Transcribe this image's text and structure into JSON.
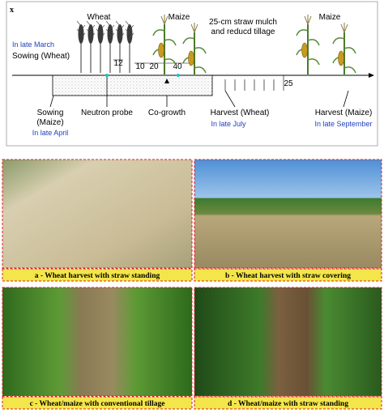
{
  "diagram": {
    "letter": "x",
    "wheat": "Wheat",
    "maize_1": "Maize",
    "mulch_1": "25-cm straw mulch",
    "mulch_2": "and reducd tillage",
    "maize_2": "Maize",
    "late_march": "In late March",
    "sowing_wheat": "Sowing (Wheat)",
    "dims": [
      12,
      10,
      20,
      40,
      25
    ],
    "sowing_maize_1": "Sowing",
    "sowing_maize_2": "(Maize)",
    "late_april": "In late April",
    "neutron_probe": "Neutron probe",
    "co_growth": "Co-growth",
    "harvest_wheat": "Harvest (Wheat)",
    "late_july": "In late July",
    "harvest_maize": "Harvest (Maize)",
    "late_september": "In late September"
  },
  "photos": [
    {
      "caption": "a - Wheat harvest with straw standing"
    },
    {
      "caption": "b - Wheat harvest with straw covering"
    },
    {
      "caption": "c - Wheat/maize with conventional tillage"
    },
    {
      "caption": "d - Wheat/maize with straw standing"
    }
  ]
}
